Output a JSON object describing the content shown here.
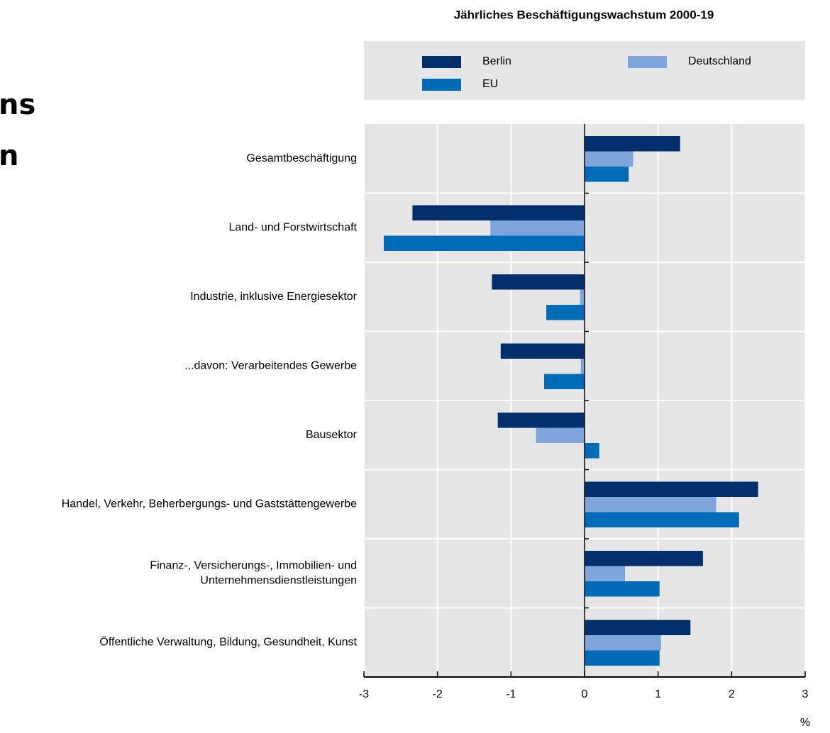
{
  "chart_data": {
    "type": "hbar",
    "title": "Jährliches Beschäftigungswachstum 2000-19",
    "annotations": [
      "ns",
      "n"
    ],
    "x_label": "%",
    "categories": [
      "Gesamtbeschäftigung",
      "Land- und Forstwirtschaft",
      "Industrie, inklusive Energiesektor",
      "...davon: Verarbeitendes Gewerbe",
      "Bausektor",
      "Handel, Verkehr, Beherbergungs- und Gaststättengewerbe",
      "Finanz-, Versicherungs-, Immobilien- und\nUnternehmensdienstleistungen",
      "Öffentliche Verwaltung, Bildung, Gesundheit, Kunst"
    ],
    "series": [
      {
        "name": "Berlin",
        "color": "#002f6c",
        "values": [
          1.3,
          -2.34,
          -1.26,
          -1.14,
          -1.18,
          2.36,
          1.61,
          1.44
        ]
      },
      {
        "name": "Deutschland",
        "color": "#7ea6dc",
        "values": [
          0.66,
          -1.28,
          -0.06,
          -0.05,
          -0.66,
          1.79,
          0.55,
          1.04
        ]
      },
      {
        "name": "EU",
        "color": "#006bb6",
        "values": [
          0.6,
          -2.73,
          -0.52,
          -0.55,
          0.2,
          2.1,
          1.02,
          1.02
        ]
      }
    ],
    "xlim": [
      -3,
      3
    ],
    "xticks": [
      -3,
      -2,
      -1,
      0,
      1,
      2,
      3
    ],
    "grid": true
  }
}
